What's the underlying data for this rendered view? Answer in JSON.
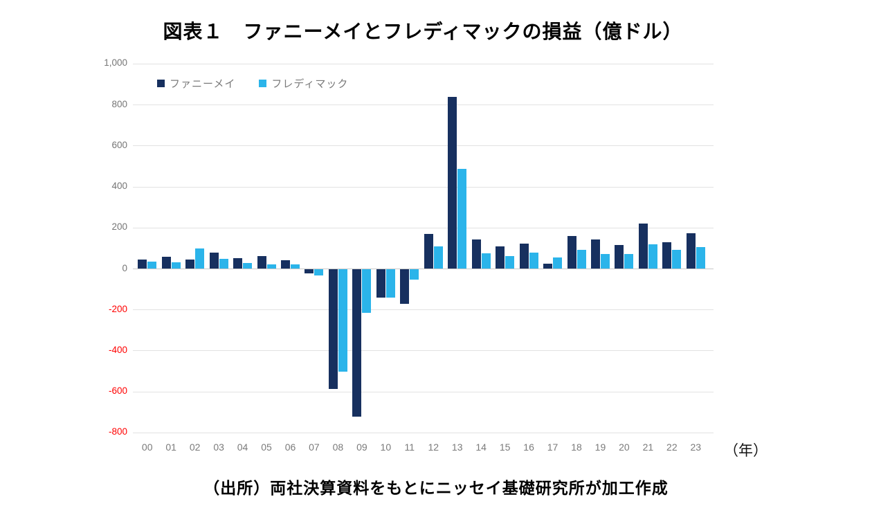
{
  "title": "図表１　ファニーメイとフレディマックの損益（億ドル）",
  "source": "（出所）両社決算資料をもとにニッセイ基礎研究所が加工作成",
  "x_axis_unit": "（年）",
  "colors": {
    "fannie_navy": "#17305f",
    "freddie_blue": "#2bb4ea",
    "negative_tick_red": "#ff0000",
    "axis_label_gray": "#757575",
    "gridline_gray": "#e2e2e2"
  },
  "legend": {
    "items": [
      {
        "label": "ファニーメイ",
        "color": "#17305f"
      },
      {
        "label": "フレディマック",
        "color": "#2bb4ea"
      }
    ]
  },
  "chart_data": {
    "type": "bar",
    "title": "図表１　ファニーメイとフレディマックの損益（億ドル）",
    "xlabel": "（年）",
    "ylabel": "",
    "categories": [
      "00",
      "01",
      "02",
      "03",
      "04",
      "05",
      "06",
      "07",
      "08",
      "09",
      "10",
      "11",
      "12",
      "13",
      "14",
      "15",
      "16",
      "17",
      "18",
      "19",
      "20",
      "21",
      "22",
      "23"
    ],
    "series": [
      {
        "name": "ファニーメイ",
        "color": "#17305f",
        "values": [
          44,
          59,
          46,
          80,
          53,
          63,
          41,
          -21,
          -587,
          -720,
          -140,
          -169,
          172,
          840,
          142,
          110,
          123,
          25,
          160,
          142,
          118,
          222,
          129,
          174
        ]
      },
      {
        "name": "フレディマック",
        "color": "#2bb4ea",
        "values": [
          37,
          32,
          101,
          48,
          29,
          21,
          23,
          -31,
          -501,
          -216,
          -140,
          -53,
          110,
          487,
          77,
          64,
          78,
          56,
          92,
          72,
          73,
          121,
          93,
          105
        ]
      }
    ],
    "ylim": [
      -800,
      1000
    ],
    "ytick_step": 200,
    "grid": true,
    "legend_position": "top-left"
  }
}
